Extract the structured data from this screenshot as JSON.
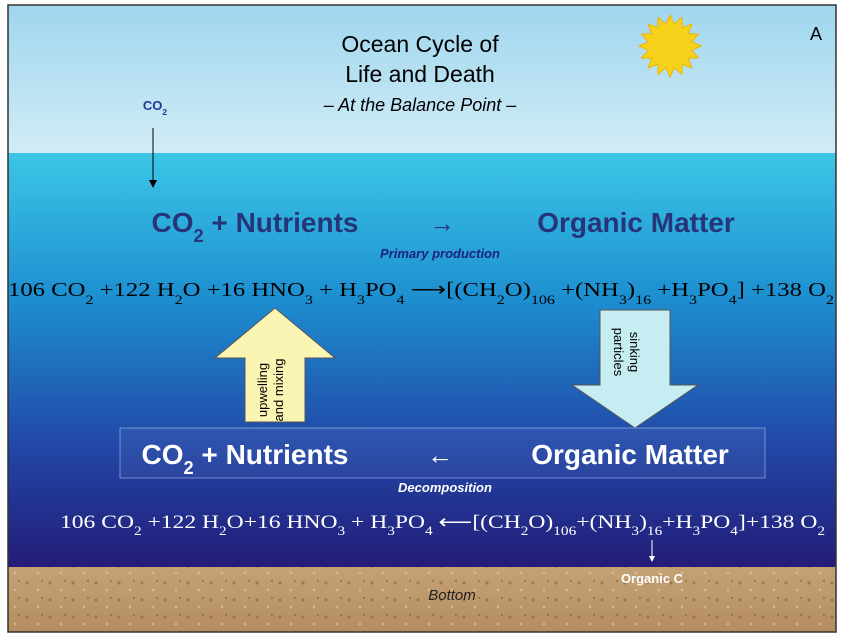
{
  "header": {
    "title_lines": [
      "Ocean Cycle of",
      "Life and Death"
    ],
    "subtitle": "– At the Balance Point –",
    "panel_label": "A"
  },
  "atmosphere": {
    "co2": [
      {
        "text": "CO"
      },
      {
        "sub": "2"
      }
    ]
  },
  "surface": {
    "left": [
      {
        "text": "CO"
      },
      {
        "sub": "2"
      },
      {
        "text": " + Nutrients"
      }
    ],
    "arrow": "→",
    "right": "Organic Matter",
    "process": "Primary production",
    "equation": [
      {
        "text": "106 CO"
      },
      {
        "sub": "2"
      },
      {
        "text": " +122 H"
      },
      {
        "sub": "2"
      },
      {
        "text": "O +16 HNO"
      },
      {
        "sub": "3"
      },
      {
        "text": " + H"
      },
      {
        "sub": "3"
      },
      {
        "text": "PO"
      },
      {
        "sub": "4"
      },
      {
        "text": " ⟶[(CH"
      },
      {
        "sub": "2"
      },
      {
        "text": "O)"
      },
      {
        "sub": "106"
      },
      {
        "text": " +(NH"
      },
      {
        "sub": "3"
      },
      {
        "text": ")"
      },
      {
        "sub": "16"
      },
      {
        "text": " +H"
      },
      {
        "sub": "3"
      },
      {
        "text": "PO"
      },
      {
        "sub": "4"
      },
      {
        "text": "] +138 O"
      },
      {
        "sub": "2"
      }
    ]
  },
  "transport": {
    "up": [
      "upwelling",
      "and mixing"
    ],
    "down": [
      "sinking",
      "particles"
    ]
  },
  "deep": {
    "left": [
      {
        "text": "CO"
      },
      {
        "sub": "2"
      },
      {
        "text": " + Nutrients"
      }
    ],
    "arrow": "←",
    "right": "Organic Matter",
    "process": "Decomposition",
    "equation": [
      {
        "text": "106 CO"
      },
      {
        "sub": "2"
      },
      {
        "text": " +122 H"
      },
      {
        "sub": "2"
      },
      {
        "text": "O+16 HNO"
      },
      {
        "sub": "3"
      },
      {
        "text": " + H"
      },
      {
        "sub": "3"
      },
      {
        "text": "PO"
      },
      {
        "sub": "4"
      },
      {
        "text": " ⟵[(CH"
      },
      {
        "sub": "2"
      },
      {
        "text": "O)"
      },
      {
        "sub": "106"
      },
      {
        "text": "+(NH"
      },
      {
        "sub": "3"
      },
      {
        "text": ")"
      },
      {
        "sub": "16"
      },
      {
        "text": "+H"
      },
      {
        "sub": "3"
      },
      {
        "text": "PO"
      },
      {
        "sub": "4"
      },
      {
        "text": "]+138 O"
      },
      {
        "sub": "2"
      }
    ]
  },
  "bottom": {
    "organic": "Organic C",
    "label": "Bottom"
  }
}
